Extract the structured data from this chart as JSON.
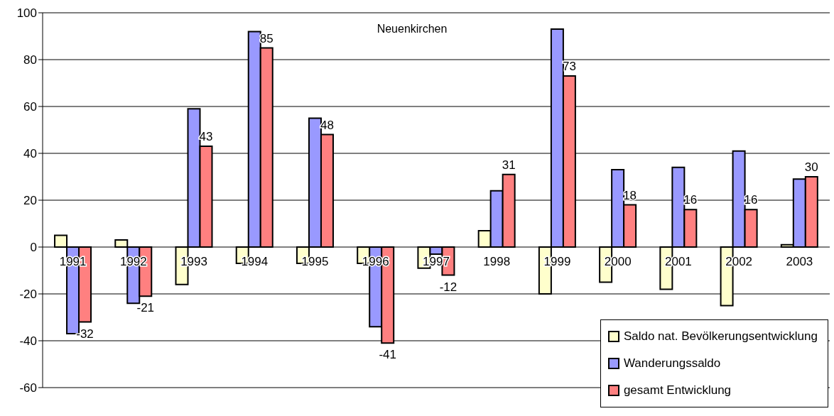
{
  "chart_data": {
    "type": "bar",
    "title": "Neuenkirchen",
    "categories": [
      "1991",
      "1992",
      "1993",
      "1994",
      "1995",
      "1996",
      "1997",
      "1998",
      "1999",
      "2000",
      "2001",
      "2002",
      "2003"
    ],
    "series": [
      {
        "name": "Saldo nat. Bevölkerungsentwicklung",
        "color": "#ffffcc",
        "values": [
          5,
          3,
          -16,
          -7,
          -7,
          -7,
          -9,
          7,
          -20,
          -15,
          -18,
          -25,
          1
        ]
      },
      {
        "name": "Wanderungssaldo",
        "color": "#9999ff",
        "values": [
          -37,
          -24,
          59,
          92,
          55,
          -34,
          -3,
          24,
          93,
          33,
          34,
          41,
          29
        ]
      },
      {
        "name": "gesamt Entwicklung",
        "color": "#ff8080",
        "values": [
          -32,
          -21,
          43,
          85,
          48,
          -41,
          -12,
          31,
          73,
          18,
          16,
          16,
          30
        ],
        "value_labels": [
          "-32",
          "-21",
          "43",
          "85",
          "48",
          "-41",
          "-12",
          "31",
          "73",
          "18",
          "16",
          "16",
          "30"
        ]
      }
    ],
    "ylim": [
      -60,
      100
    ],
    "yticks": [
      -60,
      -40,
      -20,
      0,
      20,
      40,
      60,
      80,
      100
    ],
    "grid": "y",
    "legend": "bottom right"
  }
}
